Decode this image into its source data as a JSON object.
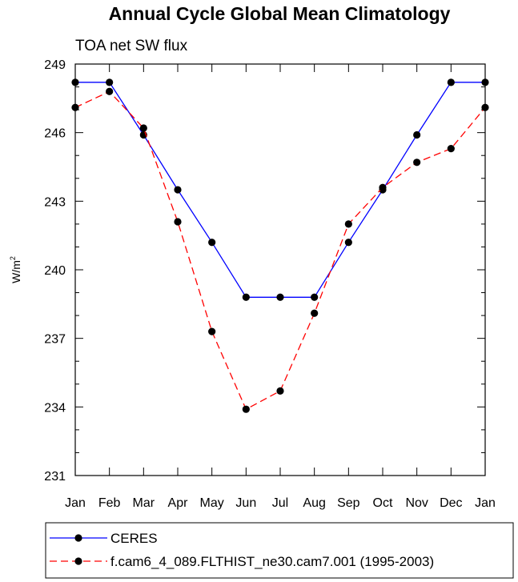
{
  "chart_data": {
    "type": "line",
    "title": "Annual Cycle Global Mean Climatology",
    "subtitle": "TOA net SW flux",
    "ylabel_base": "W/m",
    "ylabel_sup": "2",
    "xlabel": "",
    "categories": [
      "Jan",
      "Feb",
      "Mar",
      "Apr",
      "May",
      "Jun",
      "Jul",
      "Aug",
      "Sep",
      "Oct",
      "Nov",
      "Dec",
      "Jan"
    ],
    "yticks": [
      231,
      234,
      237,
      240,
      243,
      246,
      249
    ],
    "ylim": [
      231,
      249
    ],
    "grid": false,
    "legend_position": "bottom",
    "series": [
      {
        "name": "CERES",
        "color": "#0000ff",
        "dash": "solid",
        "marker": "filled-circle",
        "values": [
          248.2,
          248.2,
          245.9,
          243.5,
          241.2,
          238.8,
          238.8,
          238.8,
          241.2,
          243.5,
          245.9,
          248.2,
          248.2
        ]
      },
      {
        "name": "f.cam6_4_089.FLTHIST_ne30.cam7.001 (1995-2003)",
        "color": "#ff0000",
        "dash": "dashed",
        "marker": "filled-circle",
        "values": [
          247.1,
          247.8,
          246.2,
          242.1,
          237.3,
          233.9,
          234.7,
          238.1,
          242.0,
          243.6,
          244.7,
          245.3,
          247.1
        ]
      }
    ]
  }
}
